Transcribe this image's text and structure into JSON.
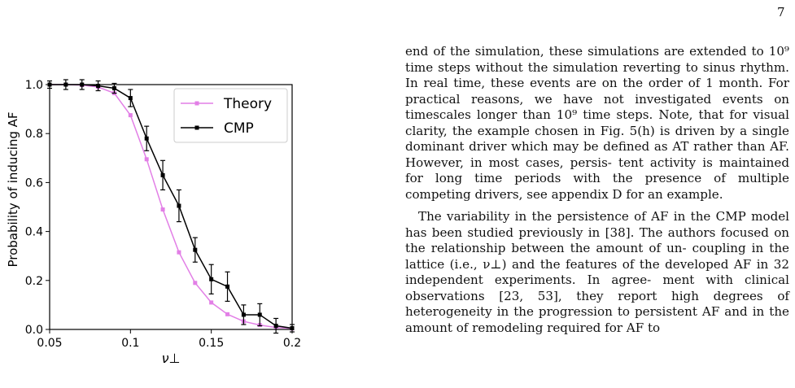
{
  "page": {
    "number": "7"
  },
  "chart_data": {
    "type": "line",
    "xlabel": "ν⊥",
    "ylabel": "Probability of inducing AF",
    "xlim": [
      0.05,
      0.2
    ],
    "ylim": [
      0.0,
      1.0
    ],
    "x_ticks": [
      "0.05",
      "0.1",
      "0.15",
      "0.2"
    ],
    "y_ticks": [
      "0.0",
      "0.2",
      "0.4",
      "0.6",
      "0.8",
      "1.0"
    ],
    "legend_position": "top-right",
    "series": [
      {
        "name": "Theory",
        "color": "#e27fe6",
        "marker": "square",
        "x": [
          0.05,
          0.06,
          0.07,
          0.08,
          0.09,
          0.1,
          0.11,
          0.12,
          0.13,
          0.14,
          0.15,
          0.16,
          0.17,
          0.18,
          0.19,
          0.2
        ],
        "y": [
          1.0,
          1.0,
          0.998,
          0.99,
          0.965,
          0.875,
          0.695,
          0.49,
          0.315,
          0.19,
          0.11,
          0.062,
          0.033,
          0.018,
          0.008,
          0.004
        ]
      },
      {
        "name": "CMP",
        "color": "#000000",
        "marker": "square",
        "x": [
          0.05,
          0.06,
          0.07,
          0.08,
          0.09,
          0.1,
          0.11,
          0.12,
          0.13,
          0.14,
          0.15,
          0.16,
          0.17,
          0.18,
          0.19,
          0.2
        ],
        "y": [
          1.0,
          1.0,
          1.0,
          0.995,
          0.985,
          0.945,
          0.78,
          0.63,
          0.505,
          0.325,
          0.205,
          0.175,
          0.06,
          0.06,
          0.015,
          0.005
        ],
        "yerr": [
          0.015,
          0.02,
          0.02,
          0.02,
          0.02,
          0.035,
          0.05,
          0.06,
          0.065,
          0.05,
          0.06,
          0.06,
          0.04,
          0.045,
          0.03,
          0.015
        ]
      }
    ]
  },
  "text": {
    "p1": [
      "end of the simulation, these simulations are extended to",
      "10⁹ time steps without the simulation reverting to sinus",
      "rhythm. In real time, these events are on the order of 1",
      "month. For practical reasons, we have not investigated",
      "events on timescales longer than 10⁹ time steps. Note,",
      "that for visual clarity, the example chosen in Fig. 5(h) is",
      "driven by a single dominant driver which may be defined",
      "as AT rather than AF. However, in most cases, persis-",
      "tent activity is maintained for long time periods with the",
      "presence of multiple competing drivers, see appendix D",
      "for an example."
    ],
    "p2": [
      "The variability in the persistence of AF in the CMP",
      "model has been studied previously in [38]. The authors",
      "focused on the relationship between the amount of un-",
      "coupling in the lattice (i.e., ν⊥) and the features of the",
      "developed AF in 32 independent experiments. In agree-",
      "ment with clinical observations [23, 53], they report high",
      "degrees of heterogeneity in the progression to persistent",
      "AF and in the amount of remodeling required for AF to"
    ]
  }
}
